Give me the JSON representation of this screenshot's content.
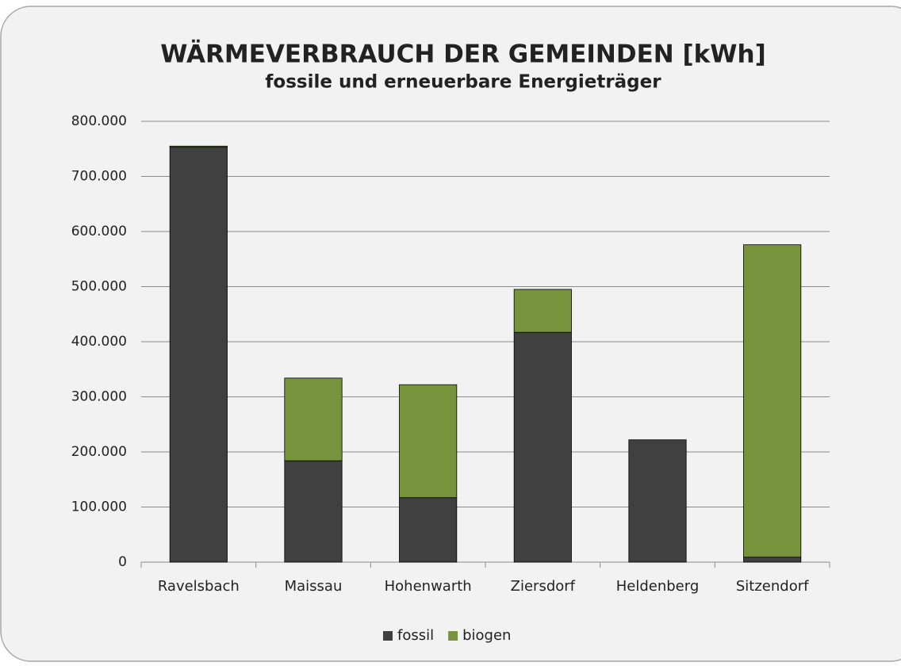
{
  "chart_data": {
    "type": "bar",
    "title": "WÄRMEVERBRAUCH DER GEMEINDEN [kWh]",
    "subtitle": "fossile und erneuerbare Energieträger",
    "categories": [
      "Ravelsbach",
      "Maissau",
      "Hohenwarth",
      "Ziersdorf",
      "Heldenberg",
      "Sitzendorf"
    ],
    "series": [
      {
        "name": "fossil",
        "color": "#404040",
        "values": [
          753000,
          184000,
          117000,
          417000,
          222000,
          9000
        ]
      },
      {
        "name": "biogen",
        "color": "#77933c",
        "values": [
          2000,
          150000,
          205000,
          78000,
          0,
          567000
        ]
      }
    ],
    "stacked": true,
    "ylim": [
      0,
      800000
    ],
    "yticks": [
      0,
      {
        "value": 100000,
        "label": "100.000"
      },
      {
        "value": 200000,
        "label": "200.000"
      },
      {
        "value": 300000,
        "label": "300.000"
      },
      {
        "value": 400000,
        "label": "400.000"
      },
      {
        "value": 500000,
        "label": "500.000"
      },
      {
        "value": 600000,
        "label": "600.000"
      },
      {
        "value": 700000,
        "label": "700.000"
      },
      {
        "value": 800000,
        "label": "800.000"
      }
    ],
    "grid": true,
    "legend": "bottom"
  }
}
